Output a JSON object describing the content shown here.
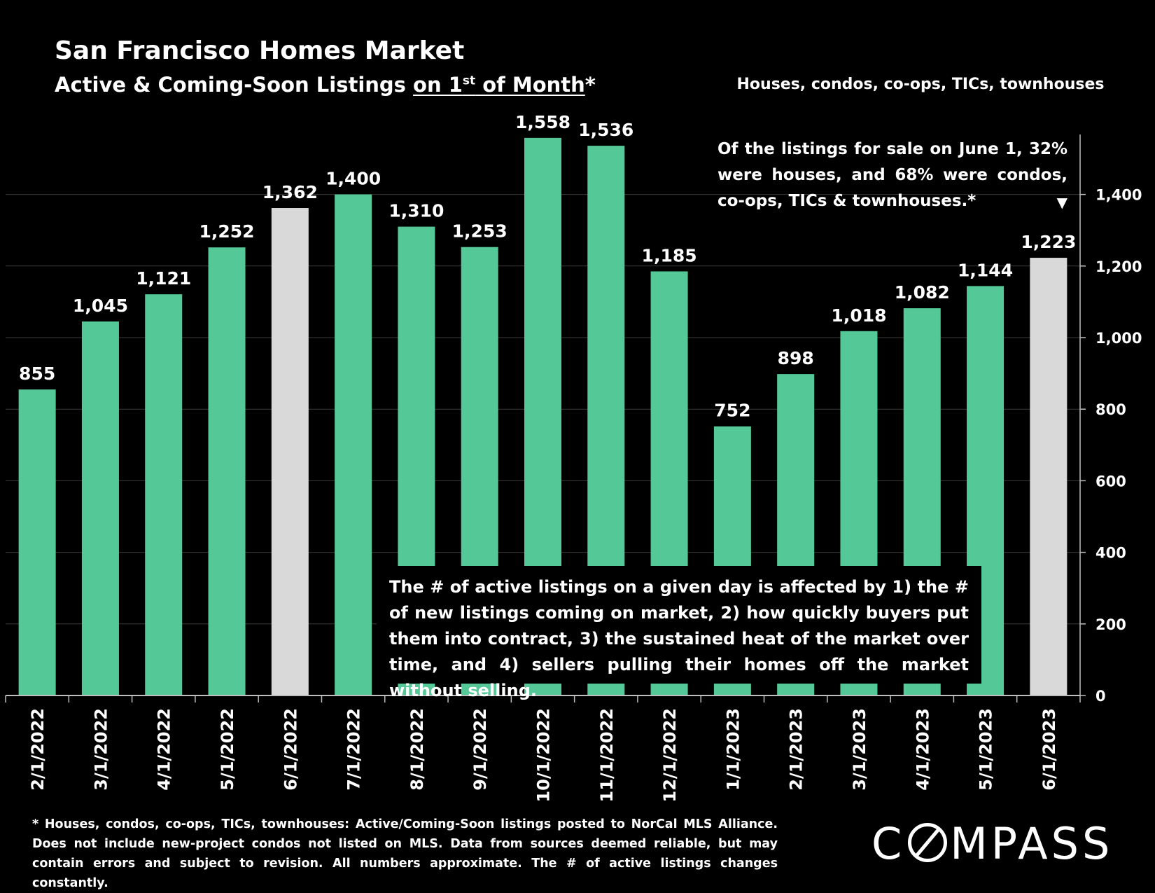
{
  "header": {
    "title": "San Francisco Homes Market",
    "subtitle_prefix": "Active & Coming-Soon Listings ",
    "subtitle_underlined_pre": "on 1",
    "subtitle_sup": "st",
    "subtitle_underlined_post": " of Month",
    "subtitle_suffix": "*",
    "scope": "Houses, condos, co-ops, TICs, townhouses"
  },
  "annotations": {
    "june_note": "Of the listings for sale on June 1, 32% were houses, and 68% were condos, co-ops, TICs & townhouses.*",
    "arrow": "▼",
    "box_note": "The # of active listings on a given day is affected by 1) the # of new listings coming on market, 2) how quickly buyers put them into contract, 3) the sustained heat of the market over time, and 4) sellers pulling their homes off the market without selling."
  },
  "footnote": "* Houses, condos, co-ops, TICs, townhouses: Active/Coming-Soon listings posted to NorCal MLS Alliance. Does not include new-project condos not listed on MLS. Data from sources deemed reliable, but may contain errors and subject to revision. All numbers approximate. The # of active listings changes constantly.",
  "brand": {
    "pre": "C",
    "post": "MPASS"
  },
  "colors": {
    "bar": "#55c898",
    "highlight_bar": "#d9d9d9",
    "grid": "#3a3a3a",
    "background": "#000000",
    "text": "#ffffff"
  },
  "chart_data": {
    "type": "bar",
    "categories": [
      "2/1/2022",
      "3/1/2022",
      "4/1/2022",
      "5/1/2022",
      "6/1/2022",
      "7/1/2022",
      "8/1/2022",
      "9/1/2022",
      "10/1/2022",
      "11/1/2022",
      "12/1/2022",
      "1/1/2023",
      "2/1/2023",
      "3/1/2023",
      "4/1/2023",
      "5/1/2023",
      "6/1/2023"
    ],
    "values": [
      855,
      1045,
      1121,
      1252,
      1362,
      1400,
      1310,
      1253,
      1558,
      1536,
      1185,
      752,
      898,
      1018,
      1082,
      1144,
      1223
    ],
    "value_labels": [
      "855",
      "1,045",
      "1,121",
      "1,252",
      "1,362",
      "1,400",
      "1,310",
      "1,253",
      "1,558",
      "1,536",
      "1,185",
      "752",
      "898",
      "1,018",
      "1,082",
      "1,144",
      "1,223"
    ],
    "highlighted": [
      "6/1/2022",
      "6/1/2023"
    ],
    "ylim": [
      0,
      1600
    ],
    "yticks": [
      0,
      200,
      400,
      600,
      800,
      1000,
      1200,
      1400
    ],
    "ytick_labels": [
      "0",
      "200",
      "400",
      "600",
      "800",
      "1,000",
      "1,200",
      "1,400"
    ],
    "y_axis_side": "right",
    "grid": true,
    "legend": "none"
  }
}
